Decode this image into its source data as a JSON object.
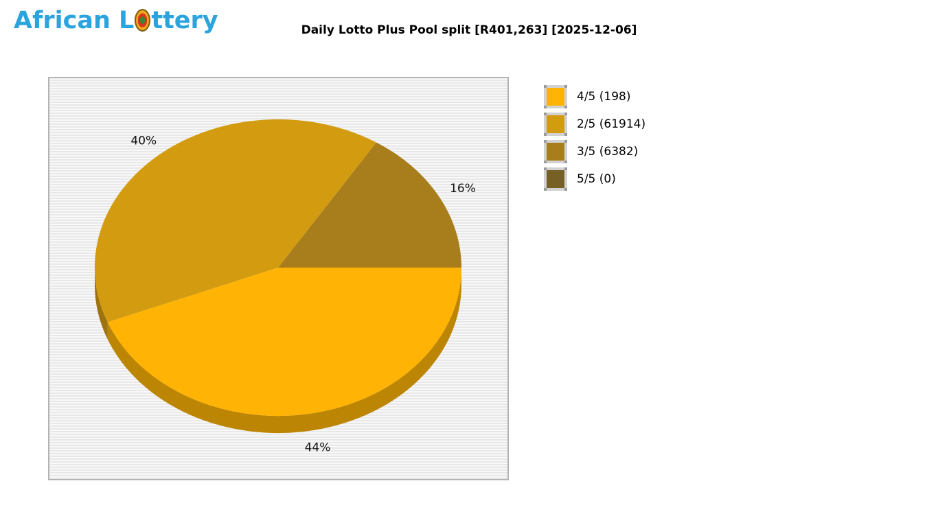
{
  "logo": {
    "text_before": "African L",
    "text_after": "ttery",
    "color": "#2BA4DE"
  },
  "header": {
    "title": "Daily Lotto Plus Pool split [R401,263] [2025-12-06]"
  },
  "chart_data": {
    "type": "pie",
    "style": "3d",
    "title": "Daily Lotto Plus Pool split [R401,263] [2025-12-06]",
    "pool_total": "R401,263",
    "draw_date": "2025-12-06",
    "start_angle_deg": 0,
    "direction": "clockwise",
    "legend_position": "right",
    "slices": [
      {
        "label": "4/5 (198)",
        "division": "4/5",
        "winners": 198,
        "pct": 44,
        "pct_label": "44%",
        "color": "#FFB405"
      },
      {
        "label": "2/5 (61914)",
        "division": "2/5",
        "winners": 61914,
        "pct": 40,
        "pct_label": "40%",
        "color": "#D39C10"
      },
      {
        "label": "3/5 (6382)",
        "division": "3/5",
        "winners": 6382,
        "pct": 16,
        "pct_label": "16%",
        "color": "#A87E1C"
      },
      {
        "label": "5/5 (0)",
        "division": "5/5",
        "winners": 0,
        "pct": 0,
        "pct_label": "",
        "color": "#766026"
      }
    ]
  }
}
